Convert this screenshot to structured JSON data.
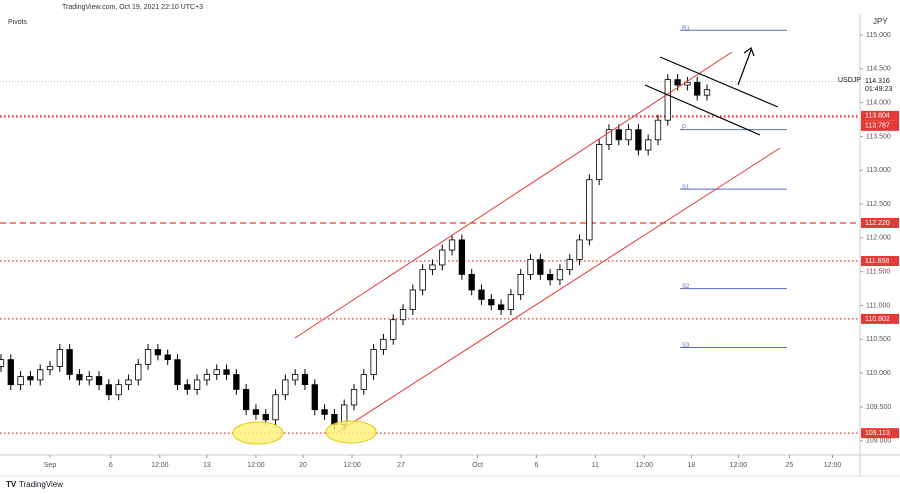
{
  "header": "TradingView.com, Oct 19, 2021 22:10 UTC+3",
  "footer": "TradingView",
  "chart_data": {
    "type": "candlestick",
    "indicator": "Pivots",
    "currency": "JPY",
    "symbol": "USDJPY",
    "last_price": 114.316,
    "countdown": "01:49:23",
    "up_color": "#ffffff",
    "down_color": "#000000",
    "wick_color": "#000000",
    "x": [
      -2.5,
      -2,
      -1.5,
      -1,
      -0.5,
      0,
      0.5,
      1,
      1.5,
      2,
      2.5,
      3,
      3.5,
      4,
      4.5,
      5,
      5.5,
      6,
      6.5,
      7,
      7.5,
      8,
      8.5,
      9,
      9.5,
      10,
      10.5,
      11,
      11.5,
      12,
      12.5,
      13,
      13.5,
      14,
      14.5,
      15,
      15.5,
      16,
      16.5,
      17,
      17.5,
      18,
      18.5,
      19,
      19.5,
      20,
      20.5,
      21,
      21.5,
      22,
      22.5,
      23,
      23.5,
      24,
      24.5,
      25,
      25.5,
      26,
      26.5,
      27,
      27.5,
      28,
      28.5,
      29,
      29.5,
      30,
      30.5,
      31,
      31.5,
      32,
      32.5,
      33,
      33.5
    ],
    "open": [
      110.1,
      110.2,
      109.83,
      109.95,
      109.9,
      110.05,
      110.1,
      110.35,
      109.98,
      109.9,
      109.95,
      109.83,
      109.68,
      109.83,
      109.9,
      110.13,
      110.35,
      110.27,
      110.2,
      109.83,
      109.76,
      109.9,
      109.98,
      110.05,
      109.98,
      109.76,
      109.46,
      109.39,
      109.31,
      109.68,
      109.9,
      109.98,
      109.83,
      109.46,
      109.39,
      109.24,
      109.53,
      109.76,
      109.98,
      110.35,
      110.5,
      110.79,
      110.94,
      111.23,
      111.53,
      111.6,
      111.82,
      111.97,
      111.46,
      111.23,
      111.09,
      111.01,
      110.94,
      111.16,
      111.46,
      111.68,
      111.46,
      111.38,
      111.53,
      111.68,
      111.97,
      112.86,
      113.38,
      113.6,
      113.45,
      113.6,
      113.3,
      113.45,
      113.74,
      114.34,
      114.26,
      114.3,
      114.11
    ],
    "high": [
      110.28,
      110.28,
      110.03,
      110.03,
      110.13,
      110.18,
      110.43,
      110.43,
      110.06,
      110.03,
      110.03,
      109.91,
      109.91,
      109.98,
      110.21,
      110.43,
      110.43,
      110.35,
      110.28,
      109.91,
      109.98,
      110.06,
      110.13,
      110.13,
      110.06,
      109.84,
      109.54,
      109.47,
      109.76,
      109.98,
      110.06,
      110.06,
      109.91,
      109.54,
      109.47,
      109.61,
      109.84,
      110.06,
      110.43,
      110.58,
      110.87,
      111.02,
      111.31,
      111.61,
      111.68,
      111.9,
      112.05,
      112.05,
      111.54,
      111.31,
      111.17,
      111.09,
      111.24,
      111.54,
      111.76,
      111.76,
      111.54,
      111.61,
      111.76,
      112.05,
      112.94,
      113.46,
      113.68,
      113.68,
      113.68,
      113.68,
      113.53,
      113.82,
      114.42,
      114.42,
      114.38,
      114.38,
      114.27
    ],
    "low": [
      110.02,
      109.75,
      109.75,
      109.82,
      109.82,
      109.97,
      110.02,
      109.9,
      109.82,
      109.82,
      109.75,
      109.6,
      109.6,
      109.75,
      109.82,
      110.05,
      110.19,
      110.12,
      109.75,
      109.68,
      109.68,
      109.82,
      109.9,
      109.9,
      109.68,
      109.38,
      109.31,
      109.23,
      109.23,
      109.6,
      109.82,
      109.75,
      109.38,
      109.31,
      109.16,
      109.16,
      109.45,
      109.68,
      109.9,
      110.27,
      110.42,
      110.71,
      110.86,
      111.15,
      111.45,
      111.52,
      111.74,
      111.38,
      111.15,
      111.01,
      110.93,
      110.86,
      110.86,
      111.08,
      111.38,
      111.38,
      111.3,
      111.3,
      111.45,
      111.6,
      111.89,
      112.78,
      113.3,
      113.37,
      113.37,
      113.22,
      113.22,
      113.37,
      113.66,
      114.18,
      114.18,
      114.03,
      114.03
    ],
    "close": [
      110.2,
      109.83,
      109.95,
      109.9,
      110.05,
      110.1,
      110.35,
      109.98,
      109.9,
      109.95,
      109.83,
      109.68,
      109.83,
      109.9,
      110.13,
      110.35,
      110.27,
      110.2,
      109.83,
      109.76,
      109.9,
      109.98,
      110.05,
      109.98,
      109.76,
      109.46,
      109.39,
      109.31,
      109.68,
      109.9,
      109.98,
      109.83,
      109.46,
      109.39,
      109.24,
      109.53,
      109.76,
      109.98,
      110.35,
      110.5,
      110.79,
      110.94,
      111.23,
      111.53,
      111.6,
      111.82,
      111.97,
      111.46,
      111.23,
      111.09,
      111.01,
      110.94,
      111.16,
      111.46,
      111.68,
      111.46,
      111.38,
      111.53,
      111.68,
      111.97,
      112.86,
      113.38,
      113.6,
      113.45,
      113.6,
      113.3,
      113.45,
      113.74,
      114.34,
      114.26,
      114.3,
      114.11,
      114.19
    ],
    "xlim": [
      -2.55,
      41.3
    ],
    "xticks": [
      {
        "value": 0,
        "label": "Sep"
      },
      {
        "value": 3.1,
        "label": "6"
      },
      {
        "value": 5.6,
        "label": "12:00"
      },
      {
        "value": 8.0,
        "label": "13"
      },
      {
        "value": 10.5,
        "label": "12:00"
      },
      {
        "value": 12.9,
        "label": "20"
      },
      {
        "value": 15.4,
        "label": "12:00"
      },
      {
        "value": 17.9,
        "label": "27"
      },
      {
        "value": 21.8,
        "label": "Oct"
      },
      {
        "value": 24.8,
        "label": "6"
      },
      {
        "value": 27.8,
        "label": "11"
      },
      {
        "value": 30.3,
        "label": "12:00"
      },
      {
        "value": 32.7,
        "label": "18"
      },
      {
        "value": 35.1,
        "label": "12:00"
      },
      {
        "value": 37.7,
        "label": "25"
      },
      {
        "value": 39.9,
        "label": "12:00"
      }
    ],
    "ylim": [
      108.79,
      115.31
    ],
    "yticks": [
      {
        "value": 109,
        "label": "109.000"
      },
      {
        "value": 109.5,
        "label": "109.500"
      },
      {
        "value": 110,
        "label": "110.000"
      },
      {
        "value": 110.5,
        "label": "110.500"
      },
      {
        "value": 111,
        "label": "111.000"
      },
      {
        "value": 111.5,
        "label": "111.500"
      },
      {
        "value": 112,
        "label": "112.000"
      },
      {
        "value": 112.5,
        "label": "112.500"
      },
      {
        "value": 113,
        "label": "113.000"
      },
      {
        "value": 113.5,
        "label": "113.500"
      },
      {
        "value": 114,
        "label": "114.000"
      },
      {
        "value": 114.5,
        "label": "114.500"
      },
      {
        "value": 115,
        "label": "115.000"
      }
    ],
    "level_color": "#e53935",
    "levels": [
      {
        "value": 113.804,
        "style": "dotted"
      },
      {
        "value": 113.787,
        "style": "dotted"
      },
      {
        "value": 112.22,
        "label": "112.220",
        "style": "dashed"
      },
      {
        "value": 111.658,
        "style": "dotted"
      },
      {
        "value": 110.802,
        "style": "dotted"
      },
      {
        "value": 109.113,
        "style": "dotted"
      }
    ],
    "pivot_color": "#5c6bc0",
    "pivots": [
      {
        "name": "R1",
        "value": 115.07
      },
      {
        "name": "P",
        "value": 113.6
      },
      {
        "name": "S1",
        "value": 112.72
      },
      {
        "name": "S2",
        "value": 111.25
      },
      {
        "name": "S3",
        "value": 110.38
      }
    ]
  }
}
